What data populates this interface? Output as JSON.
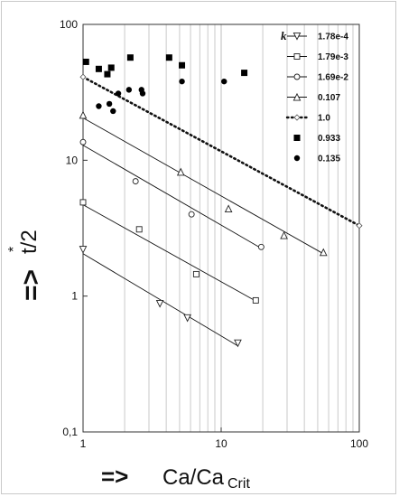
{
  "chart_data": {
    "type": "scatter",
    "x_scale": "log",
    "y_scale": "log",
    "xlim": [
      1,
      100
    ],
    "ylim": [
      0.1,
      100
    ],
    "grid": "vertical",
    "legend_position": "top-right",
    "legend_title": "k",
    "xlabel_arrow": "=>",
    "xlabel_main": "Ca/Ca",
    "xlabel_sub": "Crit",
    "ylabel_arrow": "=>",
    "ylabel_main": "t/2",
    "ylabel_sup": "*",
    "x_ticks": [
      {
        "value": 1,
        "label": "1"
      },
      {
        "value": 10,
        "label": "10"
      },
      {
        "value": 100,
        "label": "100"
      }
    ],
    "y_ticks": [
      {
        "value": 0.1,
        "label": "0,1"
      },
      {
        "value": 1,
        "label": "1"
      },
      {
        "value": 10,
        "label": "10"
      },
      {
        "value": 100,
        "label": "100"
      }
    ],
    "series": [
      {
        "name": "1.78e-4",
        "marker": "triangle-down",
        "line": "solid",
        "points": [
          {
            "x": 1.0,
            "y": 2.2
          },
          {
            "x": 3.6,
            "y": 0.88
          },
          {
            "x": 5.7,
            "y": 0.69
          },
          {
            "x": 13.2,
            "y": 0.45
          }
        ],
        "fit": [
          {
            "x": 1.0,
            "y": 2.05
          },
          {
            "x": 13.2,
            "y": 0.43
          }
        ]
      },
      {
        "name": "1.79e-3",
        "marker": "square",
        "line": "solid",
        "points": [
          {
            "x": 1.0,
            "y": 4.9
          },
          {
            "x": 2.55,
            "y": 3.1
          },
          {
            "x": 6.6,
            "y": 1.45
          },
          {
            "x": 17.8,
            "y": 0.93
          }
        ],
        "fit": [
          {
            "x": 1.0,
            "y": 4.7
          },
          {
            "x": 17.8,
            "y": 0.92
          }
        ]
      },
      {
        "name": "1.69e-2",
        "marker": "circle",
        "line": "solid",
        "points": [
          {
            "x": 1.0,
            "y": 13.6
          },
          {
            "x": 2.4,
            "y": 7.0
          },
          {
            "x": 6.1,
            "y": 4.0
          },
          {
            "x": 19.5,
            "y": 2.3
          }
        ],
        "fit": [
          {
            "x": 1.0,
            "y": 12.9
          },
          {
            "x": 19.5,
            "y": 2.25
          }
        ]
      },
      {
        "name": "0.107",
        "marker": "triangle-up",
        "line": "solid",
        "points": [
          {
            "x": 1.0,
            "y": 21.5
          },
          {
            "x": 5.1,
            "y": 8.2
          },
          {
            "x": 11.3,
            "y": 4.4
          },
          {
            "x": 28.5,
            "y": 2.8
          },
          {
            "x": 55,
            "y": 2.1
          }
        ],
        "fit": [
          {
            "x": 1.0,
            "y": 20.5
          },
          {
            "x": 55,
            "y": 2.05
          }
        ]
      },
      {
        "name": "1.0",
        "marker": "diamond",
        "line": "dotted",
        "points": [
          {
            "x": 1.0,
            "y": 41
          },
          {
            "x": 100,
            "y": 3.3
          }
        ],
        "fit": [
          {
            "x": 1.0,
            "y": 41
          },
          {
            "x": 100,
            "y": 3.3
          }
        ]
      },
      {
        "name": "0.933",
        "marker": "filled-square",
        "line": "none",
        "points": [
          {
            "x": 1.05,
            "y": 53
          },
          {
            "x": 1.3,
            "y": 47
          },
          {
            "x": 1.5,
            "y": 43
          },
          {
            "x": 1.6,
            "y": 48
          },
          {
            "x": 2.2,
            "y": 57
          },
          {
            "x": 4.2,
            "y": 57
          },
          {
            "x": 5.2,
            "y": 50
          },
          {
            "x": 14.7,
            "y": 44
          }
        ],
        "fit": []
      },
      {
        "name": "0.135",
        "marker": "filled-circle",
        "line": "none",
        "points": [
          {
            "x": 1.3,
            "y": 25
          },
          {
            "x": 1.55,
            "y": 26
          },
          {
            "x": 1.65,
            "y": 23
          },
          {
            "x": 1.8,
            "y": 31
          },
          {
            "x": 2.15,
            "y": 33
          },
          {
            "x": 2.65,
            "y": 33
          },
          {
            "x": 2.7,
            "y": 31
          },
          {
            "x": 5.2,
            "y": 38
          },
          {
            "x": 10.5,
            "y": 38
          }
        ],
        "fit": []
      }
    ]
  }
}
